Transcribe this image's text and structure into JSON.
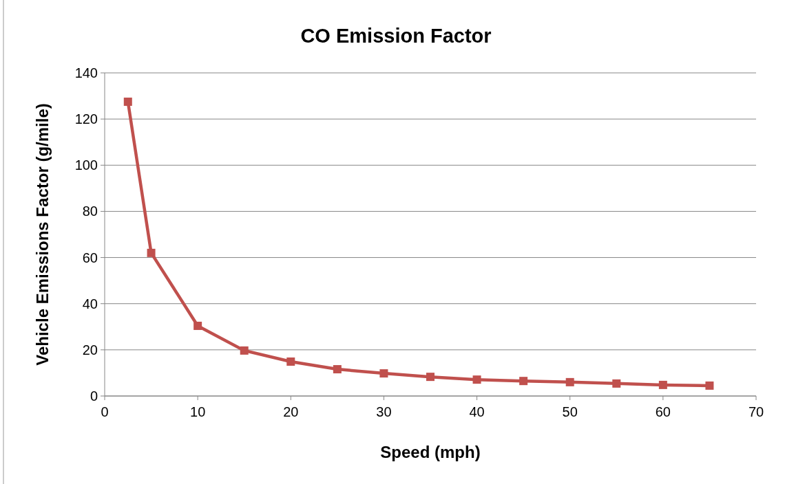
{
  "chart_data": {
    "type": "line",
    "title": "CO Emission Factor",
    "xlabel": "Speed (mph)",
    "ylabel": "Vehicle Emissions Factor (g/mile)",
    "x": [
      2.5,
      5,
      10,
      15,
      20,
      25,
      30,
      35,
      40,
      45,
      50,
      55,
      60,
      65
    ],
    "series": [
      {
        "color": "#c0504d",
        "values": [
          127.5,
          62,
          30.4,
          19.7,
          14.9,
          11.6,
          9.8,
          8.3,
          7.1,
          6.5,
          6.0,
          5.4,
          4.8,
          4.5
        ]
      }
    ],
    "xlim": [
      0,
      70
    ],
    "xticks": [
      0,
      10,
      20,
      30,
      40,
      50,
      60,
      70
    ],
    "ylim": [
      0,
      140
    ],
    "yticks": [
      0,
      20,
      40,
      60,
      80,
      100,
      120,
      140
    ],
    "grid": "y",
    "marker": "square",
    "line_style": "solid"
  }
}
